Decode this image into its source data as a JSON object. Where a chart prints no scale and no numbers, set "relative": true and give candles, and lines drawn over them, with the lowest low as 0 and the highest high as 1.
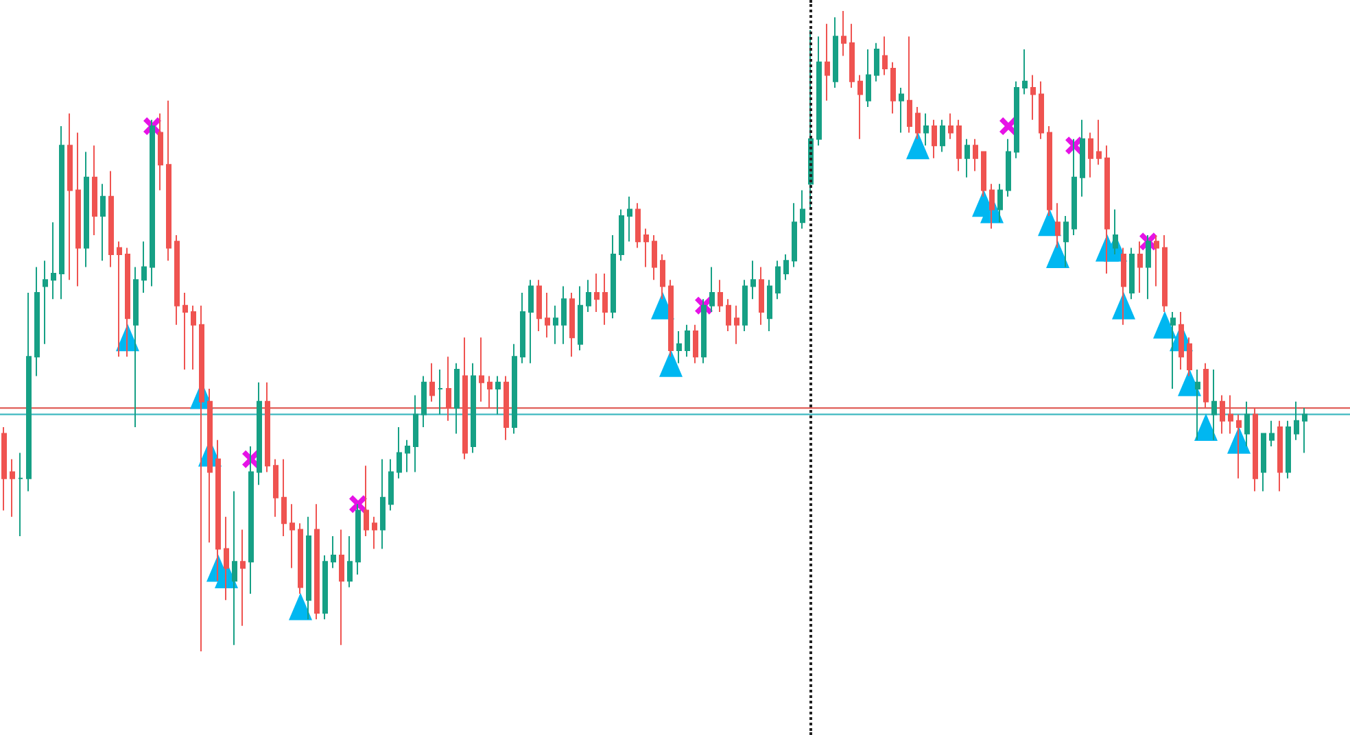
{
  "chart_data": {
    "type": "candlestick",
    "relative": true,
    "tick_labels": false,
    "categories": [
      null,
      null,
      null,
      null,
      null,
      null,
      null,
      null,
      null,
      null,
      null,
      null,
      null,
      null,
      null,
      null,
      null,
      null,
      null,
      null,
      null,
      null,
      null,
      null,
      null,
      null,
      null,
      null,
      null,
      null,
      null,
      null,
      null,
      null,
      null,
      null,
      null,
      null,
      null,
      null,
      null,
      null,
      null,
      null,
      null,
      null,
      null,
      null,
      null,
      null,
      null,
      null,
      null,
      null,
      null,
      null,
      null,
      null,
      null,
      null,
      null,
      null,
      null,
      null,
      null,
      null,
      null,
      null,
      null,
      null,
      null,
      null,
      null,
      null,
      null,
      null,
      null,
      null,
      null,
      null,
      null,
      null,
      null,
      null,
      null,
      null,
      null,
      null,
      null,
      null,
      null,
      null,
      null,
      null,
      null,
      null,
      null,
      null,
      null,
      null,
      null,
      null,
      null,
      null,
      null,
      null,
      null,
      null,
      null,
      null,
      null,
      null,
      null,
      null,
      null,
      null,
      null,
      null,
      null,
      null,
      null,
      null,
      null,
      null,
      null,
      null,
      null,
      null,
      null,
      null,
      null,
      null,
      null,
      null,
      null,
      null,
      null,
      null,
      null,
      null,
      null,
      null,
      null,
      null,
      null,
      null,
      null,
      null,
      null,
      null,
      null,
      null,
      null,
      null,
      null,
      null,
      null,
      null,
      null
    ],
    "series": [
      {
        "ohlc": [
          [
            0.34,
            0.35,
            0.22,
            0.27
          ],
          [
            0.28,
            0.3,
            0.21,
            0.27
          ],
          [
            0.27,
            0.31,
            0.18,
            0.27
          ],
          [
            0.27,
            0.56,
            0.25,
            0.46
          ],
          [
            0.46,
            0.6,
            0.43,
            0.56
          ],
          [
            0.57,
            0.61,
            0.48,
            0.58
          ],
          [
            0.58,
            0.67,
            0.55,
            0.59
          ],
          [
            0.59,
            0.82,
            0.55,
            0.79
          ],
          [
            0.79,
            0.84,
            0.58,
            0.72
          ],
          [
            0.72,
            0.81,
            0.57,
            0.63
          ],
          [
            0.63,
            0.78,
            0.6,
            0.74
          ],
          [
            0.74,
            0.79,
            0.65,
            0.68
          ],
          [
            0.68,
            0.73,
            0.61,
            0.71
          ],
          [
            0.71,
            0.75,
            0.6,
            0.62
          ],
          [
            0.63,
            0.64,
            0.46,
            0.62
          ],
          [
            0.62,
            0.63,
            0.46,
            0.52
          ],
          [
            0.51,
            0.6,
            0.35,
            0.58
          ],
          [
            0.58,
            0.64,
            0.56,
            0.6
          ],
          [
            0.6,
            0.83,
            0.57,
            0.82
          ],
          [
            0.81,
            0.84,
            0.72,
            0.76
          ],
          [
            0.76,
            0.86,
            0.61,
            0.63
          ],
          [
            0.64,
            0.65,
            0.51,
            0.54
          ],
          [
            0.54,
            0.56,
            0.44,
            0.53
          ],
          [
            0.53,
            0.54,
            0.44,
            0.51
          ],
          [
            0.51,
            0.54,
            0,
            0.39
          ],
          [
            0.39,
            0.41,
            0.17,
            0.28
          ],
          [
            0.3,
            0.33,
            0.11,
            0.16
          ],
          [
            0.16,
            0.21,
            0.08,
            0.13
          ],
          [
            0.11,
            0.25,
            0.01,
            0.14
          ],
          [
            0.14,
            0.19,
            0.04,
            0.13
          ],
          [
            0.14,
            0.32,
            0.09,
            0.28
          ],
          [
            0.28,
            0.42,
            0.26,
            0.39
          ],
          [
            0.39,
            0.42,
            0.28,
            0.29
          ],
          [
            0.29,
            0.3,
            0.21,
            0.24
          ],
          [
            0.24,
            0.3,
            0.18,
            0.2
          ],
          [
            0.2,
            0.23,
            0.13,
            0.19
          ],
          [
            0.19,
            0.2,
            0.09,
            0.1
          ],
          [
            0.08,
            0.21,
            0.05,
            0.18
          ],
          [
            0.19,
            0.23,
            0.05,
            0.06
          ],
          [
            0.06,
            0.15,
            0.05,
            0.14
          ],
          [
            0.14,
            0.18,
            0.13,
            0.15
          ],
          [
            0.15,
            0.19,
            0.01,
            0.11
          ],
          [
            0.11,
            0.18,
            0.1,
            0.14
          ],
          [
            0.14,
            0.23,
            0.12,
            0.22
          ],
          [
            0.22,
            0.29,
            0.18,
            0.19
          ],
          [
            0.2,
            0.21,
            0.16,
            0.19
          ],
          [
            0.19,
            0.3,
            0.16,
            0.24
          ],
          [
            0.23,
            0.3,
            0.22,
            0.28
          ],
          [
            0.28,
            0.35,
            0.27,
            0.31
          ],
          [
            0.31,
            0.33,
            0.28,
            0.32
          ],
          [
            0.32,
            0.4,
            0.28,
            0.37
          ],
          [
            0.37,
            0.43,
            0.35,
            0.42
          ],
          [
            0.42,
            0.45,
            0.39,
            0.4
          ],
          [
            0.41,
            0.44,
            0.37,
            0.41
          ],
          [
            0.41,
            0.46,
            0.36,
            0.38
          ],
          [
            0.38,
            0.45,
            0.34,
            0.44
          ],
          [
            0.43,
            0.49,
            0.3,
            0.31
          ],
          [
            0.32,
            0.45,
            0.31,
            0.43
          ],
          [
            0.43,
            0.49,
            0.39,
            0.42
          ],
          [
            0.42,
            0.43,
            0.38,
            0.41
          ],
          [
            0.41,
            0.43,
            0.37,
            0.42
          ],
          [
            0.42,
            0.43,
            0.33,
            0.35
          ],
          [
            0.35,
            0.48,
            0.34,
            0.46
          ],
          [
            0.46,
            0.56,
            0.45,
            0.53
          ],
          [
            0.53,
            0.58,
            0.45,
            0.57
          ],
          [
            0.57,
            0.58,
            0.5,
            0.52
          ],
          [
            0.52,
            0.56,
            0.49,
            0.51
          ],
          [
            0.51,
            0.54,
            0.48,
            0.52
          ],
          [
            0.51,
            0.57,
            0.48,
            0.55
          ],
          [
            0.55,
            0.56,
            0.46,
            0.49
          ],
          [
            0.48,
            0.57,
            0.47,
            0.54
          ],
          [
            0.54,
            0.58,
            0.53,
            0.56
          ],
          [
            0.56,
            0.59,
            0.53,
            0.55
          ],
          [
            0.56,
            0.59,
            0.51,
            0.53
          ],
          [
            0.53,
            0.65,
            0.52,
            0.62
          ],
          [
            0.62,
            0.69,
            0.61,
            0.68
          ],
          [
            0.68,
            0.71,
            0.64,
            0.69
          ],
          [
            0.69,
            0.7,
            0.63,
            0.64
          ],
          [
            0.65,
            0.66,
            0.6,
            0.64
          ],
          [
            0.64,
            0.65,
            0.58,
            0.6
          ],
          [
            0.61,
            0.62,
            0.55,
            0.57
          ],
          [
            0.57,
            0.58,
            0.46,
            0.47
          ],
          [
            0.47,
            0.5,
            0.45,
            0.48
          ],
          [
            0.47,
            0.51,
            0.46,
            0.5
          ],
          [
            0.5,
            0.51,
            0.45,
            0.46
          ],
          [
            0.46,
            0.55,
            0.45,
            0.54
          ],
          [
            0.54,
            0.6,
            0.53,
            0.56
          ],
          [
            0.56,
            0.58,
            0.53,
            0.54
          ],
          [
            0.54,
            0.55,
            0.5,
            0.51
          ],
          [
            0.52,
            0.54,
            0.48,
            0.51
          ],
          [
            0.51,
            0.58,
            0.5,
            0.57
          ],
          [
            0.57,
            0.61,
            0.55,
            0.58
          ],
          [
            0.58,
            0.6,
            0.51,
            0.53
          ],
          [
            0.52,
            0.58,
            0.5,
            0.57
          ],
          [
            0.56,
            0.61,
            0.55,
            0.6
          ],
          [
            0.59,
            0.62,
            0.58,
            0.61
          ],
          [
            0.61,
            0.7,
            0.6,
            0.67
          ],
          [
            0.67,
            0.72,
            0.66,
            0.69
          ],
          [
            0.73,
            0.97,
            0.69,
            0.8
          ],
          [
            0.8,
            0.96,
            0.79,
            0.92
          ],
          [
            0.92,
            0.98,
            0.86,
            0.9
          ],
          [
            0.89,
            0.99,
            0.88,
            0.96
          ],
          [
            0.96,
            1,
            0.93,
            0.95
          ],
          [
            0.95,
            0.98,
            0.88,
            0.89
          ],
          [
            0.89,
            0.9,
            0.8,
            0.87
          ],
          [
            0.86,
            0.94,
            0.85,
            0.9
          ],
          [
            0.9,
            0.95,
            0.89,
            0.94
          ],
          [
            0.93,
            0.96,
            0.9,
            0.91
          ],
          [
            0.91,
            0.92,
            0.84,
            0.86
          ],
          [
            0.86,
            0.88,
            0.81,
            0.87
          ],
          [
            0.86,
            0.96,
            0.81,
            0.82
          ],
          [
            0.84,
            0.85,
            0.8,
            0.81
          ],
          [
            0.81,
            0.84,
            0.79,
            0.82
          ],
          [
            0.82,
            0.83,
            0.77,
            0.79
          ],
          [
            0.79,
            0.83,
            0.78,
            0.82
          ],
          [
            0.82,
            0.84,
            0.8,
            0.81
          ],
          [
            0.82,
            0.83,
            0.75,
            0.77
          ],
          [
            0.77,
            0.8,
            0.74,
            0.79
          ],
          [
            0.79,
            0.8,
            0.75,
            0.77
          ],
          [
            0.78,
            0.78,
            0.71,
            0.72
          ],
          [
            0.72,
            0.73,
            0.66,
            0.69
          ],
          [
            0.69,
            0.73,
            0.67,
            0.72
          ],
          [
            0.72,
            0.8,
            0.71,
            0.78
          ],
          [
            0.78,
            0.89,
            0.77,
            0.88
          ],
          [
            0.88,
            0.94,
            0.87,
            0.89
          ],
          [
            0.88,
            0.9,
            0.83,
            0.87
          ],
          [
            0.87,
            0.89,
            0.8,
            0.81
          ],
          [
            0.81,
            0.82,
            0.68,
            0.69
          ],
          [
            0.67,
            0.7,
            0.63,
            0.65
          ],
          [
            0.64,
            0.68,
            0.6,
            0.67
          ],
          [
            0.66,
            0.8,
            0.65,
            0.74
          ],
          [
            0.74,
            0.83,
            0.71,
            0.8
          ],
          [
            0.8,
            0.81,
            0.74,
            0.77
          ],
          [
            0.78,
            0.83,
            0.76,
            0.77
          ],
          [
            0.77,
            0.79,
            0.59,
            0.66
          ],
          [
            0.63,
            0.69,
            0.62,
            0.65
          ],
          [
            0.62,
            0.63,
            0.51,
            0.57
          ],
          [
            0.56,
            0.63,
            0.55,
            0.62
          ],
          [
            0.62,
            0.64,
            0.56,
            0.6
          ],
          [
            0.6,
            0.65,
            0.55,
            0.64
          ],
          [
            0.64,
            0.65,
            0.57,
            0.63
          ],
          [
            0.63,
            0.65,
            0.53,
            0.54
          ],
          [
            0.51,
            0.53,
            0.41,
            0.52
          ],
          [
            0.51,
            0.53,
            0.44,
            0.46
          ],
          [
            0.48,
            0.49,
            0.43,
            0.44
          ],
          [
            0.41,
            0.44,
            0.33,
            0.42
          ],
          [
            0.44,
            0.45,
            0.38,
            0.39
          ],
          [
            0.37,
            0.44,
            0.33,
            0.39
          ],
          [
            0.39,
            0.4,
            0.34,
            0.36
          ],
          [
            0.37,
            0.4,
            0.34,
            0.36
          ],
          [
            0.36,
            0.37,
            0.27,
            0.35
          ],
          [
            0.34,
            0.39,
            0.32,
            0.37
          ],
          [
            0.37,
            0.38,
            0.25,
            0.27
          ],
          [
            0.28,
            0.34,
            0.25,
            0.34
          ],
          [
            0.33,
            0.36,
            0.32,
            0.34
          ],
          [
            0.35,
            0.36,
            0.25,
            0.28
          ],
          [
            0.28,
            0.36,
            0.27,
            0.35
          ],
          [
            0.34,
            0.39,
            0.33,
            0.36
          ],
          [
            0.36,
            0.38,
            0.31,
            0.37
          ]
        ],
        "colors": [
          "#ef5350",
          "#ef5350",
          "#16a085",
          "#16a085",
          "#16a085",
          "#16a085",
          "#16a085",
          "#16a085",
          "#ef5350",
          "#ef5350",
          "#16a085",
          "#ef5350",
          "#16a085",
          "#ef5350",
          "#ef5350",
          "#ef5350",
          "#16a085",
          "#16a085",
          "#16a085",
          "#ef5350",
          "#ef5350",
          "#ef5350",
          "#ef5350",
          "#ef5350",
          "#ef5350",
          "#ef5350",
          "#ef5350",
          "#ef5350",
          "#16a085",
          "#ef5350",
          "#16a085",
          "#16a085",
          "#ef5350",
          "#ef5350",
          "#ef5350",
          "#ef5350",
          "#ef5350",
          "#16a085",
          "#ef5350",
          "#16a085",
          "#16a085",
          "#ef5350",
          "#16a085",
          "#16a085",
          "#ef5350",
          "#ef5350",
          "#16a085",
          "#16a085",
          "#16a085",
          "#16a085",
          "#16a085",
          "#16a085",
          "#ef5350",
          "#16a085",
          "#ef5350",
          "#16a085",
          "#ef5350",
          "#16a085",
          "#ef5350",
          "#ef5350",
          "#16a085",
          "#ef5350",
          "#16a085",
          "#16a085",
          "#16a085",
          "#ef5350",
          "#ef5350",
          "#16a085",
          "#16a085",
          "#ef5350",
          "#16a085",
          "#16a085",
          "#ef5350",
          "#ef5350",
          "#16a085",
          "#16a085",
          "#16a085",
          "#ef5350",
          "#ef5350",
          "#ef5350",
          "#ef5350",
          "#ef5350",
          "#16a085",
          "#16a085",
          "#ef5350",
          "#16a085",
          "#16a085",
          "#ef5350",
          "#ef5350",
          "#ef5350",
          "#16a085",
          "#16a085",
          "#ef5350",
          "#16a085",
          "#16a085",
          "#16a085",
          "#16a085",
          "#16a085",
          "#16a085",
          "#16a085",
          "#ef5350",
          "#16a085",
          "#ef5350",
          "#ef5350",
          "#ef5350",
          "#16a085",
          "#16a085",
          "#ef5350",
          "#ef5350",
          "#16a085",
          "#ef5350",
          "#ef5350",
          "#16a085",
          "#ef5350",
          "#16a085",
          "#ef5350",
          "#ef5350",
          "#16a085",
          "#ef5350",
          "#ef5350",
          "#ef5350",
          "#16a085",
          "#16a085",
          "#16a085",
          "#16a085",
          "#ef5350",
          "#ef5350",
          "#ef5350",
          "#ef5350",
          "#16a085",
          "#16a085",
          "#16a085",
          "#ef5350",
          "#ef5350",
          "#ef5350",
          "#16a085",
          "#ef5350",
          "#16a085",
          "#ef5350",
          "#16a085",
          "#ef5350",
          "#ef5350",
          "#16a085",
          "#ef5350",
          "#ef5350",
          "#16a085",
          "#ef5350",
          "#16a085",
          "#ef5350",
          "#ef5350",
          "#ef5350",
          "#16a085",
          "#ef5350",
          "#16a085",
          "#16a085",
          "#ef5350",
          "#16a085",
          "#16a085",
          "#16a085"
        ]
      },
      {
        "type": "scatter",
        "color": "#00b7f1",
        "marker": "triangle",
        "values": [
          null,
          null,
          null,
          null,
          null,
          null,
          null,
          null,
          null,
          null,
          null,
          null,
          null,
          null,
          null,
          0.49,
          null,
          null,
          null,
          null,
          null,
          null,
          null,
          null,
          0.4,
          0.31,
          0.13,
          0.12,
          null,
          null,
          null,
          null,
          null,
          null,
          null,
          null,
          0.07,
          null,
          null,
          null,
          null,
          null,
          null,
          null,
          null,
          null,
          null,
          null,
          null,
          null,
          null,
          null,
          null,
          null,
          null,
          null,
          null,
          null,
          null,
          null,
          null,
          null,
          null,
          null,
          null,
          null,
          null,
          null,
          null,
          null,
          null,
          null,
          null,
          null,
          null,
          null,
          null,
          null,
          null,
          null,
          0.54,
          0.45,
          null,
          null,
          null,
          null,
          null,
          null,
          null,
          null,
          null,
          null,
          null,
          null,
          null,
          null,
          null,
          null,
          null,
          null,
          null,
          null,
          null,
          null,
          null,
          null,
          null,
          null,
          null,
          null,
          null,
          0.79,
          null,
          null,
          null,
          null,
          null,
          null,
          null,
          0.7,
          0.69,
          null,
          null,
          null,
          null,
          null,
          null,
          0.67,
          0.62,
          null,
          null,
          null,
          null,
          null,
          0.63,
          0.63,
          0.54,
          null,
          null,
          null,
          null,
          0.51,
          null,
          0.49,
          0.42,
          null,
          0.35,
          null,
          null,
          null,
          0.33,
          null,
          null,
          null,
          null,
          null,
          null,
          null,
          null
        ]
      },
      {
        "type": "scatter",
        "color": "#e612e6",
        "marker": "cross",
        "values": [
          null,
          null,
          null,
          null,
          null,
          null,
          null,
          null,
          null,
          null,
          null,
          null,
          null,
          null,
          null,
          null,
          null,
          null,
          0.82,
          null,
          null,
          null,
          null,
          null,
          null,
          null,
          null,
          null,
          null,
          null,
          0.3,
          null,
          null,
          null,
          null,
          null,
          null,
          null,
          null,
          null,
          null,
          null,
          null,
          0.23,
          null,
          null,
          null,
          null,
          null,
          null,
          null,
          null,
          null,
          null,
          null,
          null,
          null,
          null,
          null,
          null,
          null,
          null,
          null,
          null,
          null,
          null,
          null,
          null,
          null,
          null,
          null,
          null,
          null,
          null,
          null,
          null,
          null,
          null,
          null,
          null,
          null,
          null,
          null,
          null,
          null,
          0.54,
          null,
          null,
          null,
          null,
          null,
          null,
          null,
          null,
          null,
          null,
          null,
          null,
          null,
          null,
          null,
          null,
          null,
          null,
          null,
          null,
          null,
          null,
          null,
          null,
          null,
          null,
          null,
          null,
          null,
          null,
          null,
          null,
          null,
          null,
          null,
          null,
          0.82,
          null,
          null,
          null,
          null,
          null,
          null,
          null,
          0.79,
          null,
          null,
          null,
          null,
          null,
          null,
          null,
          null,
          0.64,
          null,
          null,
          null,
          null,
          null,
          null,
          null,
          null,
          null,
          null,
          null,
          null,
          null,
          null,
          null,
          null,
          null,
          null,
          null
        ]
      }
    ],
    "ref_lines": [
      {
        "axis": "y",
        "value": 0.38,
        "color": "#e0605a"
      },
      {
        "axis": "y",
        "value": 0.37,
        "color": "#3fb8c0"
      }
    ]
  }
}
